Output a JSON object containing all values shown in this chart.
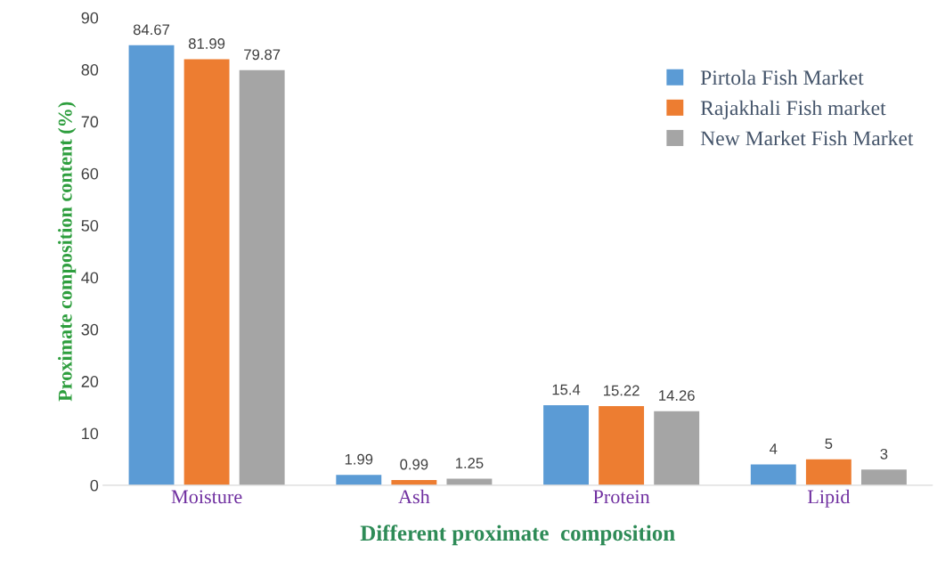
{
  "chart_data": {
    "type": "bar",
    "xlabel": "Different proximate  composition",
    "ylabel": "Proximate composition content (%)",
    "categories": [
      "Moisture",
      "Ash",
      "Protein",
      "Lipid"
    ],
    "series": [
      {
        "name": "Pirtola Fish Market",
        "color": "#5b9bd5",
        "values": [
          84.67,
          1.99,
          15.4,
          4
        ]
      },
      {
        "name": "Rajakhali Fish market",
        "color": "#ed7d31",
        "values": [
          81.99,
          0.99,
          15.22,
          5
        ]
      },
      {
        "name": "New Market Fish Market",
        "color": "#a5a5a5",
        "values": [
          79.87,
          1.25,
          14.26,
          3
        ]
      }
    ],
    "ylim": [
      0,
      90
    ],
    "yticks": [
      0,
      10,
      20,
      30,
      40,
      50,
      60,
      70,
      80,
      90
    ],
    "data_labels": true,
    "legend": "top right",
    "grid": false
  }
}
